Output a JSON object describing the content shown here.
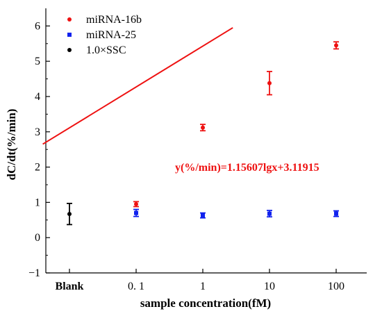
{
  "chart_data": {
    "type": "scatter",
    "xlabel": "sample concentration(fM)",
    "ylabel": "dC/dt(%/min)",
    "categories": [
      "Blank",
      "0. 1",
      "1",
      "10",
      "100"
    ],
    "ylim": [
      -1,
      6.5
    ],
    "yticks": [
      -1,
      0,
      1,
      2,
      3,
      4,
      5,
      6
    ],
    "grid": false,
    "legend_position": "top-left",
    "series": [
      {
        "name": "miRNA-16b",
        "color": "#ee1111",
        "marker": "circle",
        "points": [
          {
            "category": "0. 1",
            "y": 0.95,
            "err": 0.07
          },
          {
            "category": "1",
            "y": 3.12,
            "err": 0.09
          },
          {
            "category": "10",
            "y": 4.38,
            "err": 0.33
          },
          {
            "category": "100",
            "y": 5.45,
            "err": 0.1
          }
        ]
      },
      {
        "name": "miRNA-25",
        "color": "#1122ee",
        "marker": "square",
        "points": [
          {
            "category": "0. 1",
            "y": 0.7,
            "err": 0.1
          },
          {
            "category": "1",
            "y": 0.63,
            "err": 0.07
          },
          {
            "category": "10",
            "y": 0.68,
            "err": 0.09
          },
          {
            "category": "100",
            "y": 0.68,
            "err": 0.08
          }
        ]
      },
      {
        "name": "1.0×SSC",
        "color": "#000000",
        "marker": "circle",
        "points": [
          {
            "category": "Blank",
            "y": 0.67,
            "err": 0.3
          }
        ]
      }
    ],
    "fit_line": {
      "color": "#ee1111",
      "equation": "y(%/min)=1.15607lgx+3.11915",
      "from": [
        -0.4,
        2.65
      ],
      "to": [
        2.45,
        5.95
      ]
    }
  }
}
